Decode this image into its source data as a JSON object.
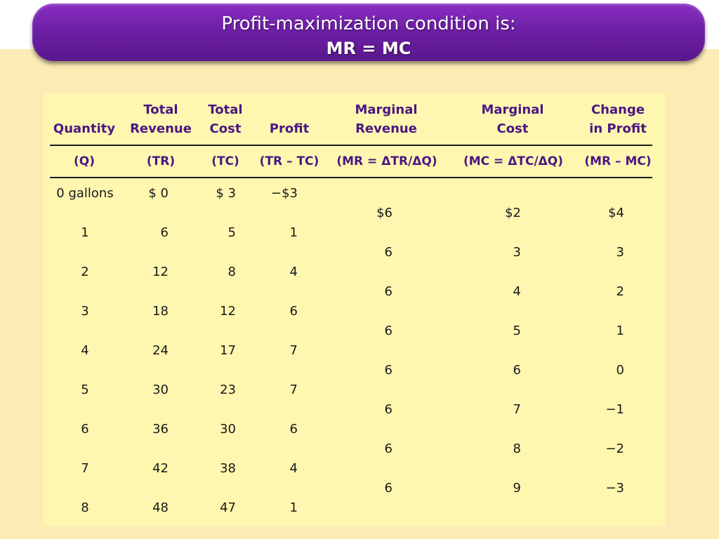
{
  "title": {
    "line1": "Profit-maximization condition is:",
    "line2": "MR = MC"
  },
  "table": {
    "headers": [
      {
        "line1": "",
        "line2": "Quantity",
        "symbol": "(Q)"
      },
      {
        "line1": "Total",
        "line2": "Revenue",
        "symbol": "(TR)"
      },
      {
        "line1": "Total",
        "line2": "Cost",
        "symbol": "(TC)"
      },
      {
        "line1": "",
        "line2": "Profit",
        "symbol": "(TR – TC)"
      },
      {
        "line1": "Marginal",
        "line2": "Revenue",
        "symbol": "(MR = ΔTR/ΔQ)"
      },
      {
        "line1": "Marginal",
        "line2": "Cost",
        "symbol": "(MC = ΔTC/ΔQ)"
      },
      {
        "line1": "Change",
        "line2": "in Profit",
        "symbol": "(MR – MC)"
      }
    ],
    "rows": [
      {
        "q": "0 gallons",
        "tr": "$  0",
        "tc": "$  3",
        "profit": "−$3"
      },
      {
        "q": "1",
        "tr": "6",
        "tc": "5",
        "profit": "1"
      },
      {
        "q": "2",
        "tr": "12",
        "tc": "8",
        "profit": "4"
      },
      {
        "q": "3",
        "tr": "18",
        "tc": "12",
        "profit": "6"
      },
      {
        "q": "4",
        "tr": "24",
        "tc": "17",
        "profit": "7"
      },
      {
        "q": "5",
        "tr": "30",
        "tc": "23",
        "profit": "7"
      },
      {
        "q": "6",
        "tr": "36",
        "tc": "30",
        "profit": "6"
      },
      {
        "q": "7",
        "tr": "42",
        "tc": "38",
        "profit": "4"
      },
      {
        "q": "8",
        "tr": "48",
        "tc": "47",
        "profit": "1"
      }
    ],
    "marginal_rows": [
      {
        "mr": "$6",
        "mc": "$2",
        "change": "$4"
      },
      {
        "mr": "6",
        "mc": "3",
        "change": "3"
      },
      {
        "mr": "6",
        "mc": "4",
        "change": "2"
      },
      {
        "mr": "6",
        "mc": "5",
        "change": "1"
      },
      {
        "mr": "6",
        "mc": "6",
        "change": "0"
      },
      {
        "mr": "6",
        "mc": "7",
        "change": "−1"
      },
      {
        "mr": "6",
        "mc": "8",
        "change": "−2"
      },
      {
        "mr": "6",
        "mc": "9",
        "change": "−3"
      }
    ]
  }
}
